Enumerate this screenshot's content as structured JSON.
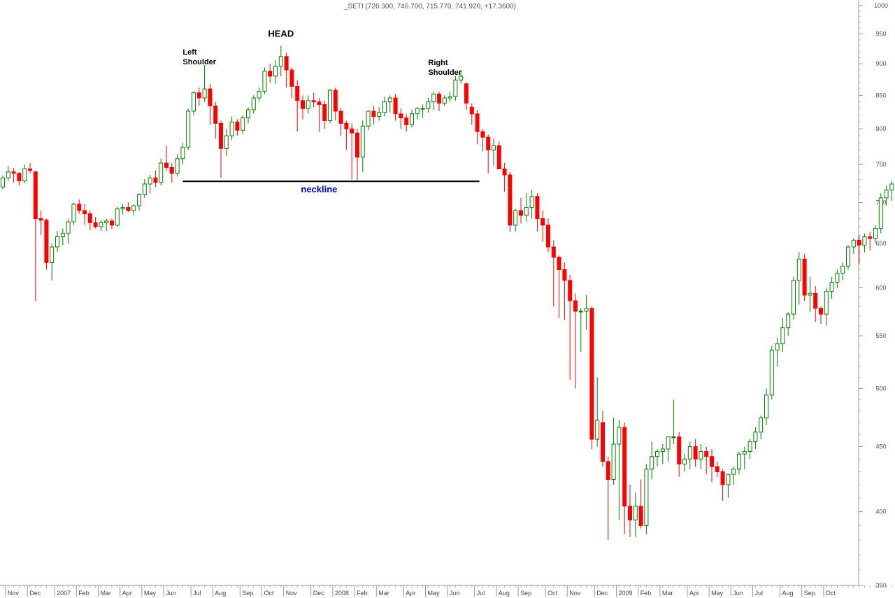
{
  "chart_data": {
    "type": "candlestick",
    "title": "_SETI (726.300, 746.700, 715.770, 741.920, +17.3600)",
    "y_scale": "log",
    "ylim": [
      350,
      1000
    ],
    "y_ticks": [
      350,
      400,
      450,
      500,
      550,
      600,
      650,
      700,
      750,
      800,
      850,
      900,
      950,
      1000
    ],
    "x_ticks": [
      "Nov",
      "Dec",
      "2007",
      "Feb",
      "Mar",
      "Apr",
      "May",
      "Jun",
      "Jul",
      "Aug",
      "Sep",
      "Oct",
      "Nov",
      "Dec",
      "2008",
      "Feb",
      "Mar",
      "Apr",
      "May",
      "Jun",
      "Jul",
      "Aug",
      "Sep",
      "Oct",
      "Nov",
      "Dec",
      "2009",
      "Feb",
      "Mar",
      "Apr",
      "May",
      "Jun",
      "Jul",
      "Aug",
      "Sep",
      "Oct"
    ],
    "x_tick_bar_index": [
      1,
      5,
      10,
      14,
      18,
      22,
      26,
      30,
      35,
      39,
      44,
      48,
      52,
      57,
      61,
      65,
      69,
      74,
      78,
      82,
      87,
      91,
      95,
      100,
      104,
      109,
      113,
      117,
      121,
      126,
      130,
      134,
      138,
      143,
      147,
      151
    ],
    "grid": false,
    "up_color": "#008000",
    "down_color": "#ff0000",
    "neckline": {
      "level": 727.5,
      "from_bar": 33,
      "to_bar": 87
    },
    "annotations": [
      {
        "id": "left-shoulder",
        "lines": [
          "Left",
          "Shoulder"
        ],
        "bar": 33,
        "y": 915
      },
      {
        "id": "head",
        "lines": [
          "HEAD"
        ],
        "bar": 51,
        "y": 945
      },
      {
        "id": "right-shoulder",
        "lines": [
          "Right",
          "Shoulder"
        ],
        "bar": 78,
        "y": 898
      },
      {
        "id": "neckline",
        "lines": [
          "neckline"
        ],
        "bar": 58,
        "y": 713
      }
    ],
    "candles": [
      [
        720,
        735,
        717,
        732
      ],
      [
        732,
        748,
        728,
        740
      ],
      [
        740,
        745,
        726,
        738
      ],
      [
        738,
        740,
        722,
        728
      ],
      [
        728,
        750,
        725,
        744
      ],
      [
        744,
        752,
        738,
        742
      ],
      [
        740,
        742,
        586,
        680
      ],
      [
        680,
        690,
        660,
        678
      ],
      [
        678,
        680,
        620,
        628
      ],
      [
        628,
        650,
        608,
        646
      ],
      [
        646,
        665,
        640,
        658
      ],
      [
        658,
        668,
        648,
        662
      ],
      [
        662,
        680,
        650,
        676
      ],
      [
        676,
        700,
        672,
        698
      ],
      [
        698,
        704,
        686,
        690
      ],
      [
        690,
        698,
        672,
        686
      ],
      [
        686,
        690,
        666,
        675
      ],
      [
        675,
        682,
        668,
        670
      ],
      [
        670,
        678,
        665,
        675
      ],
      [
        675,
        680,
        665,
        677
      ],
      [
        677,
        680,
        667,
        672
      ],
      [
        672,
        695,
        670,
        692
      ],
      [
        692,
        698,
        685,
        694
      ],
      [
        694,
        700,
        688,
        690
      ],
      [
        690,
        698,
        684,
        696
      ],
      [
        696,
        712,
        690,
        710
      ],
      [
        710,
        730,
        706,
        724
      ],
      [
        724,
        736,
        712,
        732
      ],
      [
        732,
        742,
        720,
        726
      ],
      [
        726,
        758,
        722,
        752
      ],
      [
        752,
        776,
        742,
        746
      ],
      [
        746,
        752,
        726,
        738
      ],
      [
        738,
        764,
        734,
        758
      ],
      [
        758,
        780,
        750,
        774
      ],
      [
        774,
        830,
        770,
        826
      ],
      [
        826,
        856,
        820,
        854
      ],
      [
        854,
        862,
        834,
        846
      ],
      [
        846,
        898,
        840,
        860
      ],
      [
        860,
        868,
        806,
        834
      ],
      [
        834,
        840,
        786,
        808
      ],
      [
        808,
        812,
        732,
        772
      ],
      [
        772,
        800,
        762,
        790
      ],
      [
        790,
        818,
        784,
        810
      ],
      [
        810,
        814,
        790,
        798
      ],
      [
        798,
        820,
        792,
        816
      ],
      [
        816,
        832,
        808,
        828
      ],
      [
        828,
        850,
        822,
        846
      ],
      [
        846,
        862,
        840,
        856
      ],
      [
        856,
        894,
        852,
        888
      ],
      [
        888,
        900,
        870,
        880
      ],
      [
        880,
        906,
        868,
        896
      ],
      [
        896,
        930,
        880,
        912
      ],
      [
        912,
        918,
        862,
        890
      ],
      [
        890,
        894,
        846,
        864
      ],
      [
        864,
        874,
        796,
        842
      ],
      [
        842,
        850,
        814,
        830
      ],
      [
        830,
        850,
        822,
        842
      ],
      [
        842,
        854,
        832,
        840
      ],
      [
        840,
        846,
        796,
        836
      ],
      [
        836,
        842,
        800,
        812
      ],
      [
        812,
        860,
        808,
        858
      ],
      [
        858,
        862,
        812,
        826
      ],
      [
        826,
        830,
        790,
        808
      ],
      [
        808,
        812,
        770,
        800
      ],
      [
        800,
        808,
        730,
        794
      ],
      [
        794,
        800,
        728,
        760
      ],
      [
        760,
        812,
        740,
        804
      ],
      [
        804,
        828,
        798,
        826
      ],
      [
        826,
        834,
        806,
        818
      ],
      [
        818,
        832,
        812,
        824
      ],
      [
        824,
        848,
        818,
        840
      ],
      [
        840,
        850,
        824,
        846
      ],
      [
        846,
        852,
        812,
        822
      ],
      [
        822,
        830,
        800,
        816
      ],
      [
        816,
        822,
        796,
        806
      ],
      [
        806,
        828,
        802,
        822
      ],
      [
        822,
        832,
        814,
        830
      ],
      [
        830,
        836,
        816,
        830
      ],
      [
        830,
        846,
        824,
        840
      ],
      [
        840,
        856,
        828,
        852
      ],
      [
        852,
        856,
        826,
        838
      ],
      [
        838,
        850,
        834,
        846
      ],
      [
        846,
        856,
        840,
        848
      ],
      [
        848,
        880,
        842,
        874
      ],
      [
        874,
        890,
        868,
        880
      ],
      [
        868,
        870,
        828,
        838
      ],
      [
        832,
        838,
        806,
        822
      ],
      [
        822,
        828,
        778,
        796
      ],
      [
        796,
        800,
        768,
        788
      ],
      [
        788,
        792,
        738,
        770
      ],
      [
        770,
        786,
        748,
        776
      ],
      [
        776,
        782,
        746,
        744
      ],
      [
        744,
        752,
        714,
        736
      ],
      [
        736,
        740,
        664,
        672
      ],
      [
        672,
        692,
        664,
        690
      ],
      [
        690,
        706,
        674,
        684
      ],
      [
        684,
        712,
        676,
        694
      ],
      [
        694,
        716,
        680,
        708
      ],
      [
        708,
        712,
        664,
        680
      ],
      [
        680,
        690,
        652,
        672
      ],
      [
        672,
        680,
        640,
        646
      ],
      [
        646,
        654,
        580,
        634
      ],
      [
        634,
        636,
        568,
        620
      ],
      [
        620,
        628,
        566,
        608
      ],
      [
        608,
        614,
        508,
        586
      ],
      [
        586,
        594,
        500,
        575
      ],
      [
        575,
        578,
        534,
        575
      ],
      [
        575,
        592,
        556,
        578
      ],
      [
        578,
        580,
        448,
        456
      ],
      [
        456,
        510,
        450,
        472
      ],
      [
        470,
        480,
        434,
        438
      ],
      [
        438,
        442,
        380,
        424
      ],
      [
        424,
        474,
        420,
        452
      ],
      [
        452,
        472,
        394,
        466
      ],
      [
        466,
        470,
        384,
        404
      ],
      [
        404,
        420,
        382,
        394
      ],
      [
        394,
        414,
        382,
        404
      ],
      [
        404,
        424,
        388,
        390
      ],
      [
        390,
        436,
        384,
        432
      ],
      [
        432,
        454,
        424,
        442
      ],
      [
        442,
        448,
        434,
        446
      ],
      [
        446,
        452,
        436,
        448
      ],
      [
        448,
        458,
        438,
        458
      ],
      [
        458,
        490,
        452,
        458
      ],
      [
        458,
        462,
        426,
        436
      ],
      [
        436,
        444,
        430,
        440
      ],
      [
        440,
        454,
        432,
        450
      ],
      [
        450,
        456,
        434,
        440
      ],
      [
        440,
        452,
        432,
        446
      ],
      [
        446,
        450,
        428,
        442
      ],
      [
        442,
        448,
        422,
        434
      ],
      [
        434,
        438,
        426,
        430
      ],
      [
        430,
        432,
        408,
        420
      ],
      [
        420,
        428,
        410,
        428
      ],
      [
        428,
        434,
        420,
        432
      ],
      [
        432,
        446,
        428,
        444
      ],
      [
        444,
        450,
        432,
        446
      ],
      [
        446,
        456,
        440,
        454
      ],
      [
        454,
        466,
        448,
        462
      ],
      [
        462,
        476,
        456,
        474
      ],
      [
        474,
        500,
        468,
        494
      ],
      [
        494,
        540,
        490,
        536
      ],
      [
        536,
        548,
        520,
        542
      ],
      [
        542,
        568,
        534,
        558
      ],
      [
        558,
        574,
        550,
        572
      ],
      [
        572,
        612,
        566,
        608
      ],
      [
        608,
        640,
        582,
        632
      ],
      [
        632,
        638,
        586,
        592
      ],
      [
        592,
        612,
        574,
        594
      ],
      [
        594,
        602,
        564,
        578
      ],
      [
        578,
        580,
        562,
        572
      ],
      [
        572,
        600,
        560,
        596
      ],
      [
        596,
        612,
        588,
        606
      ],
      [
        606,
        620,
        600,
        616
      ],
      [
        616,
        628,
        608,
        624
      ],
      [
        624,
        648,
        620,
        646
      ],
      [
        646,
        656,
        638,
        654
      ],
      [
        654,
        660,
        626,
        648
      ],
      [
        648,
        662,
        640,
        658
      ],
      [
        658,
        664,
        642,
        656
      ],
      [
        656,
        672,
        650,
        668
      ],
      [
        668,
        712,
        662,
        706
      ],
      [
        706,
        722,
        696,
        716
      ],
      [
        716,
        728,
        702,
        724
      ],
      [
        724,
        736,
        714,
        728
      ],
      [
        728,
        740,
        708,
        732
      ],
      [
        726,
        747,
        716,
        742
      ]
    ]
  }
}
